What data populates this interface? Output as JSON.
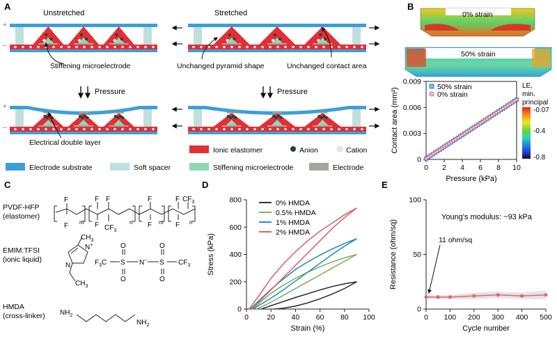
{
  "panels": {
    "A": {
      "letter": "A",
      "unstretched": "Unstretched",
      "stretched": "Stretched",
      "stiffening_microelectrode": "Stiffening microelectrode",
      "unchanged_pyramid": "Unchanged pyramid shape",
      "unchanged_contact": "Unchanged contact area",
      "pressure": "Pressure",
      "electrical_double_layer": "Electrical double layer",
      "plus": "+",
      "minus": "–"
    },
    "B": {
      "letter": "B",
      "strain0": "0% strain",
      "strain50": "50% strain",
      "colorbar_title": [
        "LE,",
        "min.",
        "principal"
      ],
      "colorbar_ticks": [
        "-0.07",
        "-0.4",
        "-0.8"
      ]
    },
    "C": {
      "letter": "C",
      "pvdf_name": "PVDF-HFP",
      "pvdf_role": "(elastomer)",
      "emim_name": "EMIM:TFSI",
      "emim_role": "(ionic liquid)",
      "hmda_name": "HMDA",
      "hmda_role": "(cross-linker)",
      "atom_F": "F",
      "atom_CF3": "CF",
      "sub_3": "3",
      "sub_m": "m",
      "sub_n": "n",
      "atom_N": "N",
      "atom_Nplus": "N",
      "sup_plus": "+",
      "atom_CH3": "CH",
      "atom_S": "S",
      "atom_O": "O",
      "atom_Nminus": "N",
      "sup_minus": "−",
      "atom_F3C": "F",
      "sub_F3C": "3",
      "atom_C": "C",
      "atom_NH2": "NH",
      "sub_2": "2"
    },
    "D": {
      "letter": "D"
    },
    "E": {
      "letter": "E",
      "annotation": "11 ohm/sq"
    }
  },
  "legend": {
    "ionic_elastomer": "Ionic elastomer",
    "anion": "Anion",
    "cation": "Cation",
    "electrode_substrate": "Electrode substrate",
    "soft_spacer": "Soft spacer",
    "stiffening_microelectrode": "Stiffening microelectrode",
    "electrode": "Electrode"
  },
  "colors": {
    "ionic_elastomer": "#e52d35",
    "anion": "#1e4536",
    "cation": "#d4eef6",
    "electrode_substrate": "#3d9fd8",
    "soft_spacer": "#bfe0de",
    "stiffening_microelectrode": "#8ed7b5",
    "electrode": "#a5a59b"
  },
  "chart_data": [
    {
      "id": "B-contact",
      "type": "scatter",
      "xlabel": "Pressure (kPa)",
      "ylabel": "Contact area (mm²)",
      "xlim": [
        0,
        10
      ],
      "ylim": [
        0,
        0.009
      ],
      "x_ticks": [
        0,
        2,
        4,
        6,
        8,
        10
      ],
      "x_tick_labels": [
        "0",
        "2",
        "4",
        "6",
        "8",
        "10"
      ],
      "y_ticks": [
        0,
        0.003,
        0.006,
        0.009
      ],
      "y_tick_labels": [
        "0",
        "0.003",
        "0.006",
        "0.009"
      ],
      "series": [
        {
          "name": "50% strain",
          "marker": "square",
          "color": "#3a86c8",
          "x": [
            0,
            0.25,
            0.5,
            0.75,
            1,
            1.25,
            1.5,
            1.75,
            2,
            2.25,
            2.5,
            2.75,
            3,
            3.25,
            3.5,
            3.75,
            4,
            4.25,
            4.5,
            4.75,
            5,
            5.25,
            5.5,
            5.75,
            6,
            6.25,
            6.5,
            6.75,
            7,
            7.25,
            7.5,
            7.75,
            8,
            8.25,
            8.5,
            8.75,
            9,
            9.25,
            9.5,
            9.75,
            10
          ],
          "y": [
            0.0001,
            0.00027,
            0.00044,
            0.00061,
            0.00078,
            0.00095,
            0.00112,
            0.00129,
            0.00146,
            0.00163,
            0.0018,
            0.00197,
            0.00214,
            0.00231,
            0.00248,
            0.00265,
            0.00282,
            0.00299,
            0.00316,
            0.00333,
            0.0035,
            0.00367,
            0.00384,
            0.00401,
            0.00418,
            0.00435,
            0.00452,
            0.00469,
            0.00486,
            0.00503,
            0.0052,
            0.00537,
            0.00554,
            0.00571,
            0.00588,
            0.00605,
            0.00622,
            0.00639,
            0.00656,
            0.00673,
            0.0069
          ]
        },
        {
          "name": "0% strain",
          "marker": "circle",
          "color": "#e06470",
          "x": [
            0,
            0.25,
            0.5,
            0.75,
            1,
            1.25,
            1.5,
            1.75,
            2,
            2.25,
            2.5,
            2.75,
            3,
            3.25,
            3.5,
            3.75,
            4,
            4.25,
            4.5,
            4.75,
            5,
            5.25,
            5.5,
            5.75,
            6,
            6.25,
            6.5,
            6.75,
            7,
            7.25,
            7.5,
            7.75,
            8,
            8.25,
            8.5,
            8.75,
            9,
            9.25,
            9.5,
            9.75,
            10
          ],
          "y": [
            0.0001,
            0.00027,
            0.00044,
            0.00061,
            0.00078,
            0.00095,
            0.00112,
            0.00129,
            0.00146,
            0.00163,
            0.0018,
            0.00197,
            0.00214,
            0.00231,
            0.00248,
            0.00265,
            0.00282,
            0.00299,
            0.00316,
            0.00333,
            0.0035,
            0.00367,
            0.00384,
            0.00401,
            0.00418,
            0.00435,
            0.00452,
            0.00469,
            0.00486,
            0.00503,
            0.0052,
            0.00537,
            0.00554,
            0.00571,
            0.00588,
            0.00605,
            0.00622,
            0.00639,
            0.00656,
            0.00673,
            0.0069
          ]
        }
      ]
    },
    {
      "id": "D-stress-strain",
      "type": "line",
      "xlabel": "Strain (%)",
      "ylabel": "Stress (kPa)",
      "xlim": [
        0,
        100
      ],
      "ylim": [
        0,
        800
      ],
      "x_ticks": [
        0,
        20,
        40,
        60,
        80,
        100
      ],
      "x_tick_labels": [
        "0",
        "20",
        "40",
        "60",
        "80",
        "100"
      ],
      "y_ticks": [
        0,
        200,
        400,
        600,
        800
      ],
      "y_tick_labels": [
        "0",
        "200",
        "400",
        "600",
        "800"
      ],
      "series": [
        {
          "name": "0% HMDA",
          "color": "#333333",
          "load": {
            "x": [
              12,
              20,
              30,
              40,
              50,
              60,
              70,
              80,
              90
            ],
            "y": [
              0,
              25,
              55,
              85,
              112,
              140,
              165,
              185,
              200
            ]
          },
          "unload": {
            "x": [
              90,
              80,
              70,
              60,
              50,
              40,
              30,
              22
            ],
            "y": [
              200,
              150,
              110,
              75,
              45,
              22,
              6,
              0
            ]
          }
        },
        {
          "name": "0.5% HMDA",
          "color": "#7fb366",
          "load": {
            "x": [
              5,
              10,
              20,
              30,
              40,
              50,
              60,
              70,
              80,
              90
            ],
            "y": [
              0,
              40,
              115,
              175,
              225,
              270,
              310,
              345,
              375,
              400
            ]
          },
          "unload": {
            "x": [
              90,
              80,
              70,
              60,
              50,
              40,
              30,
              20,
              12,
              8
            ],
            "y": [
              400,
              350,
              300,
              250,
              200,
              150,
              100,
              50,
              15,
              0
            ]
          }
        },
        {
          "name": "1% HMDA",
          "color": "#2b8fb8",
          "load": {
            "x": [
              3,
              10,
              20,
              30,
              40,
              50,
              60,
              70,
              80,
              90
            ],
            "y": [
              0,
              60,
              145,
              220,
              290,
              345,
              395,
              440,
              480,
              515
            ]
          },
          "unload": {
            "x": [
              90,
              80,
              70,
              60,
              50,
              40,
              30,
              20,
              10,
              5
            ],
            "y": [
              515,
              460,
              400,
              335,
              270,
              205,
              140,
              80,
              25,
              0
            ]
          }
        },
        {
          "name": "2% HMDA",
          "color": "#e0646a",
          "load": {
            "x": [
              2,
              10,
              20,
              30,
              40,
              50,
              60,
              70,
              80,
              90
            ],
            "y": [
              0,
              95,
              225,
              330,
              420,
              500,
              570,
              630,
              690,
              740
            ]
          },
          "unload": {
            "x": [
              90,
              80,
              70,
              60,
              50,
              40,
              30,
              20,
              10,
              4
            ],
            "y": [
              740,
              670,
              590,
              500,
              410,
              320,
              230,
              140,
              50,
              0
            ]
          }
        }
      ]
    },
    {
      "id": "E-resistance",
      "type": "line",
      "title": "Young's modulus: ~93 kPa",
      "xlabel": "Cycle number",
      "ylabel": "Resistance (ohm/sq)",
      "xlim": [
        0,
        500
      ],
      "ylim": [
        0,
        100
      ],
      "x_ticks": [
        0,
        100,
        200,
        300,
        400,
        500
      ],
      "x_tick_labels": [
        "0",
        "100",
        "200",
        "300",
        "400",
        "500"
      ],
      "y_ticks": [
        0,
        50,
        100
      ],
      "y_tick_labels": [
        "0",
        "50",
        "100"
      ],
      "series": [
        {
          "name": "Resistance",
          "color": "#e0646a",
          "x": [
            0,
            50,
            100,
            200,
            300,
            400,
            500
          ],
          "y": [
            11,
            11,
            11,
            12,
            13,
            12,
            13
          ],
          "band": [
            2,
            2,
            2,
            3,
            3,
            3,
            4
          ]
        }
      ]
    }
  ]
}
